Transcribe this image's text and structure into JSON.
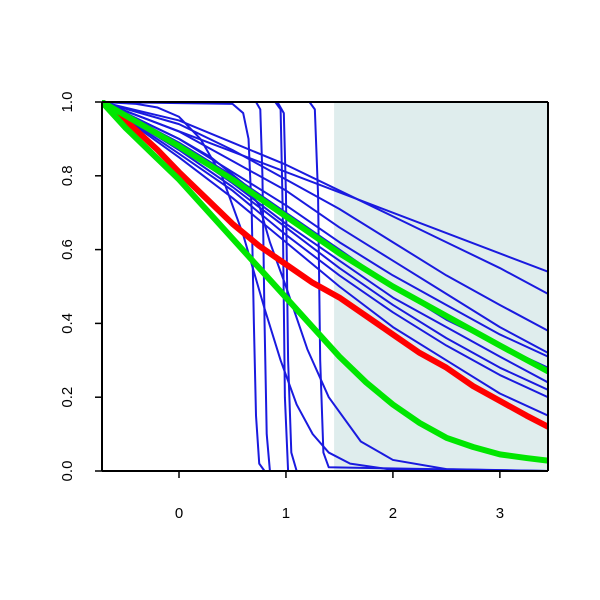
{
  "chart_data": {
    "type": "line",
    "title": "",
    "xlabel": "",
    "ylabel": "",
    "xlim": [
      -0.72,
      3.45
    ],
    "ylim": [
      0,
      1
    ],
    "x_ticks": [
      "0",
      "1",
      "2",
      "3"
    ],
    "y_ticks": [
      "0.0",
      "0.2",
      "0.4",
      "0.6",
      "0.8",
      "1.0"
    ],
    "grid": false,
    "legend": "none",
    "shaded_region": {
      "x_from": 1.45,
      "x_to": 3.45,
      "color": "#dfeded"
    },
    "colors": {
      "step_curves": "#1a1adf",
      "red_curve": "#ff0000",
      "green_curves": "#00e600",
      "axis": "#000000"
    },
    "series": [
      {
        "color": "#1a1adf",
        "width": 2,
        "points": [
          [
            -0.72,
            1.0
          ],
          [
            0.5,
            0.995
          ],
          [
            0.6,
            0.97
          ],
          [
            0.65,
            0.9
          ],
          [
            0.68,
            0.7
          ],
          [
            0.7,
            0.4
          ],
          [
            0.72,
            0.15
          ],
          [
            0.75,
            0.02
          ],
          [
            0.8,
            0.0
          ],
          [
            3.45,
            0.0
          ]
        ]
      },
      {
        "color": "#1a1adf",
        "width": 2,
        "points": [
          [
            -0.72,
            1.0
          ],
          [
            0.72,
            1.0
          ],
          [
            0.76,
            0.98
          ],
          [
            0.78,
            0.8
          ],
          [
            0.8,
            0.4
          ],
          [
            0.82,
            0.1
          ],
          [
            0.85,
            0.0
          ],
          [
            3.45,
            0.0
          ]
        ]
      },
      {
        "color": "#1a1adf",
        "width": 2,
        "points": [
          [
            -0.72,
            1.0
          ],
          [
            0.9,
            1.0
          ],
          [
            0.95,
            0.98
          ],
          [
            0.97,
            0.7
          ],
          [
            0.99,
            0.2
          ],
          [
            1.02,
            0.0
          ],
          [
            3.45,
            0.0
          ]
        ]
      },
      {
        "color": "#1a1adf",
        "width": 2,
        "points": [
          [
            -0.72,
            1.0
          ],
          [
            0.92,
            1.0
          ],
          [
            0.98,
            0.97
          ],
          [
            1.0,
            0.75
          ],
          [
            1.02,
            0.3
          ],
          [
            1.05,
            0.05
          ],
          [
            1.1,
            0.0
          ],
          [
            3.45,
            0.0
          ]
        ]
      },
      {
        "color": "#1a1adf",
        "width": 2,
        "points": [
          [
            -0.72,
            1.0
          ],
          [
            1.22,
            1.0
          ],
          [
            1.27,
            0.98
          ],
          [
            1.3,
            0.75
          ],
          [
            1.32,
            0.3
          ],
          [
            1.35,
            0.05
          ],
          [
            1.4,
            0.01
          ],
          [
            3.45,
            0.0
          ]
        ]
      },
      {
        "color": "#1a1adf",
        "width": 2,
        "points": [
          [
            -0.72,
            1.0
          ],
          [
            -0.4,
            0.995
          ],
          [
            -0.2,
            0.985
          ],
          [
            0.0,
            0.96
          ],
          [
            0.2,
            0.9
          ],
          [
            0.4,
            0.8
          ],
          [
            0.6,
            0.64
          ],
          [
            0.8,
            0.44
          ],
          [
            0.95,
            0.3
          ],
          [
            1.1,
            0.18
          ],
          [
            1.25,
            0.1
          ],
          [
            1.4,
            0.05
          ],
          [
            1.6,
            0.02
          ],
          [
            2.0,
            0.003
          ],
          [
            3.45,
            0.0
          ]
        ]
      },
      {
        "color": "#1a1adf",
        "width": 2,
        "points": [
          [
            -0.72,
            1.0
          ],
          [
            -0.5,
            0.97
          ],
          [
            0.0,
            0.9
          ],
          [
            0.3,
            0.85
          ],
          [
            0.6,
            0.78
          ],
          [
            0.75,
            0.72
          ],
          [
            0.85,
            0.62
          ],
          [
            1.0,
            0.5
          ],
          [
            1.2,
            0.33
          ],
          [
            1.4,
            0.2
          ],
          [
            1.7,
            0.08
          ],
          [
            2.0,
            0.03
          ],
          [
            2.5,
            0.005
          ],
          [
            3.45,
            0.0
          ]
        ]
      },
      {
        "color": "#1a1adf",
        "width": 2,
        "points": [
          [
            -0.72,
            1.0
          ],
          [
            0.0,
            0.88
          ],
          [
            0.5,
            0.78
          ],
          [
            1.0,
            0.67
          ],
          [
            1.5,
            0.57
          ],
          [
            2.0,
            0.47
          ],
          [
            2.5,
            0.39
          ],
          [
            3.0,
            0.31
          ],
          [
            3.45,
            0.24
          ]
        ]
      },
      {
        "color": "#1a1adf",
        "width": 2,
        "points": [
          [
            -0.72,
            1.0
          ],
          [
            0.0,
            0.87
          ],
          [
            0.5,
            0.77
          ],
          [
            1.0,
            0.66
          ],
          [
            1.5,
            0.55
          ],
          [
            2.0,
            0.45
          ],
          [
            2.5,
            0.36
          ],
          [
            3.0,
            0.28
          ],
          [
            3.45,
            0.22
          ]
        ]
      },
      {
        "color": "#1a1adf",
        "width": 2,
        "points": [
          [
            -0.72,
            1.0
          ],
          [
            0.0,
            0.86
          ],
          [
            0.5,
            0.76
          ],
          [
            1.0,
            0.64
          ],
          [
            1.5,
            0.53
          ],
          [
            2.0,
            0.43
          ],
          [
            2.5,
            0.34
          ],
          [
            3.0,
            0.26
          ],
          [
            3.45,
            0.2
          ]
        ]
      },
      {
        "color": "#1a1adf",
        "width": 2,
        "points": [
          [
            -0.72,
            1.0
          ],
          [
            0.0,
            0.85
          ],
          [
            0.5,
            0.74
          ],
          [
            1.0,
            0.62
          ],
          [
            1.5,
            0.5
          ],
          [
            2.0,
            0.39
          ],
          [
            2.5,
            0.3
          ],
          [
            3.0,
            0.21
          ],
          [
            3.45,
            0.15
          ]
        ]
      },
      {
        "color": "#1a1adf",
        "width": 2,
        "points": [
          [
            -0.72,
            1.0
          ],
          [
            0.0,
            0.89
          ],
          [
            0.5,
            0.8
          ],
          [
            1.0,
            0.7
          ],
          [
            1.5,
            0.6
          ],
          [
            2.0,
            0.5
          ],
          [
            2.5,
            0.41
          ],
          [
            3.0,
            0.34
          ],
          [
            3.45,
            0.28
          ]
        ]
      },
      {
        "color": "#1a1adf",
        "width": 2,
        "points": [
          [
            -0.72,
            1.0
          ],
          [
            0.0,
            0.9
          ],
          [
            0.5,
            0.81
          ],
          [
            1.0,
            0.72
          ],
          [
            1.5,
            0.62
          ],
          [
            2.0,
            0.53
          ],
          [
            2.5,
            0.45
          ],
          [
            3.0,
            0.37
          ],
          [
            3.45,
            0.31
          ]
        ]
      },
      {
        "color": "#1a1adf",
        "width": 2,
        "points": [
          [
            -0.72,
            1.0
          ],
          [
            0.0,
            0.92
          ],
          [
            0.5,
            0.84
          ],
          [
            1.0,
            0.76
          ],
          [
            1.5,
            0.66
          ],
          [
            2.0,
            0.57
          ],
          [
            2.5,
            0.48
          ],
          [
            3.0,
            0.39
          ],
          [
            3.45,
            0.32
          ]
        ]
      },
      {
        "color": "#1a1adf",
        "width": 2,
        "points": [
          [
            -0.72,
            1.0
          ],
          [
            0.0,
            0.94
          ],
          [
            0.5,
            0.87
          ],
          [
            1.0,
            0.79
          ],
          [
            1.5,
            0.71
          ],
          [
            2.0,
            0.62
          ],
          [
            2.5,
            0.53
          ],
          [
            3.0,
            0.45
          ],
          [
            3.45,
            0.38
          ]
        ]
      },
      {
        "color": "#1a1adf",
        "width": 2,
        "points": [
          [
            -0.72,
            1.0
          ],
          [
            0.0,
            0.95
          ],
          [
            0.5,
            0.89
          ],
          [
            1.0,
            0.83
          ],
          [
            1.5,
            0.76
          ],
          [
            2.0,
            0.69
          ],
          [
            2.5,
            0.62
          ],
          [
            3.0,
            0.55
          ],
          [
            3.45,
            0.48
          ]
        ]
      },
      {
        "color": "#1a1adf",
        "width": 2,
        "points": [
          [
            -0.72,
            1.0
          ],
          [
            3.45,
            0.54
          ]
        ]
      },
      {
        "color": "#ff0000",
        "width": 6,
        "points": [
          [
            -0.72,
            1.0
          ],
          [
            -0.5,
            0.95
          ],
          [
            -0.2,
            0.87
          ],
          [
            0.0,
            0.81
          ],
          [
            0.25,
            0.74
          ],
          [
            0.5,
            0.67
          ],
          [
            0.75,
            0.61
          ],
          [
            1.0,
            0.56
          ],
          [
            1.25,
            0.51
          ],
          [
            1.5,
            0.47
          ],
          [
            1.75,
            0.42
          ],
          [
            2.0,
            0.37
          ],
          [
            2.25,
            0.32
          ],
          [
            2.5,
            0.28
          ],
          [
            2.75,
            0.23
          ],
          [
            3.0,
            0.19
          ],
          [
            3.25,
            0.15
          ],
          [
            3.45,
            0.12
          ]
        ]
      },
      {
        "color": "#00e600",
        "width": 6,
        "points": [
          [
            -0.72,
            1.0
          ],
          [
            -0.5,
            0.93
          ],
          [
            -0.25,
            0.86
          ],
          [
            0.0,
            0.79
          ],
          [
            0.25,
            0.71
          ],
          [
            0.5,
            0.63
          ],
          [
            0.75,
            0.55
          ],
          [
            1.0,
            0.47
          ],
          [
            1.25,
            0.39
          ],
          [
            1.5,
            0.31
          ],
          [
            1.75,
            0.24
          ],
          [
            2.0,
            0.18
          ],
          [
            2.25,
            0.13
          ],
          [
            2.5,
            0.09
          ],
          [
            2.75,
            0.065
          ],
          [
            3.0,
            0.045
          ],
          [
            3.25,
            0.035
          ],
          [
            3.45,
            0.028
          ]
        ]
      },
      {
        "color": "#00e600",
        "width": 6,
        "points": [
          [
            -0.72,
            1.0
          ],
          [
            0.0,
            0.88
          ],
          [
            0.5,
            0.79
          ],
          [
            1.0,
            0.69
          ],
          [
            1.5,
            0.59
          ],
          [
            2.0,
            0.5
          ],
          [
            2.5,
            0.42
          ],
          [
            3.0,
            0.34
          ],
          [
            3.45,
            0.27
          ]
        ]
      }
    ]
  }
}
